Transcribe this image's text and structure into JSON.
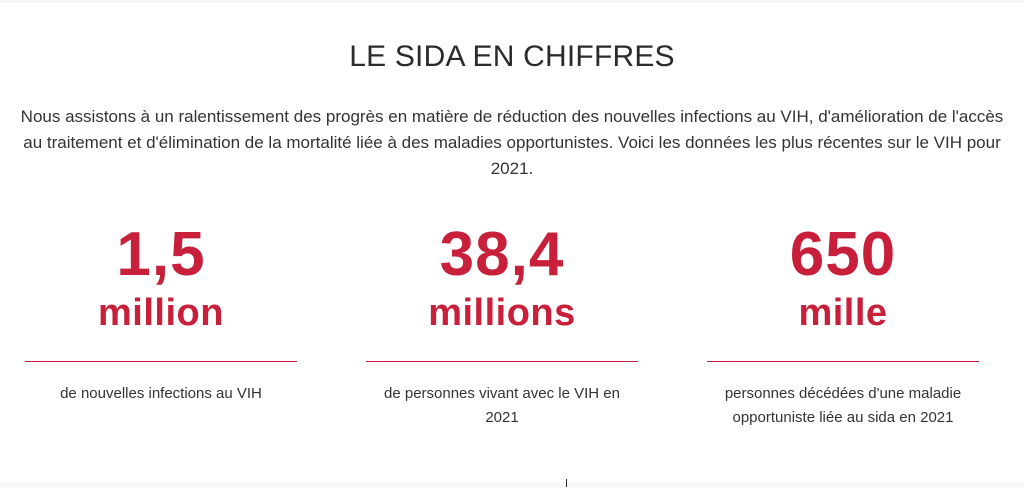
{
  "section": {
    "title": "LE SIDA EN CHIFFRES",
    "intro": "Nous assistons à un ralentissement des progrès en matière de réduction des nouvelles infections au VIH, d'amélioration de l'accès au traitement et d'élimination de la mortalité liée à des maladies opportunistes. Voici les données les plus récentes sur le VIH pour 2021."
  },
  "stats": [
    {
      "number": "1,5",
      "unit": "million",
      "description": "de nouvelles infections au VIH"
    },
    {
      "number": "38,4",
      "unit": "millions",
      "description": "de personnes vivant avec le VIH en 2021"
    },
    {
      "number": "650",
      "unit": "mille",
      "description": "personnes décédées d'une maladie opportuniste liée au sida en 2021"
    }
  ],
  "colors": {
    "accent": "#c8203a",
    "text": "#333333",
    "title": "#2b2b2b"
  }
}
